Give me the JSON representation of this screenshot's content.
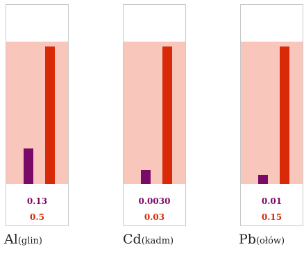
{
  "chart_data": {
    "type": "bar",
    "colors": {
      "actual": "#7a0a68",
      "limit": "#d82a08",
      "band": "#f9c6bc"
    },
    "groups": [
      {
        "symbol": "Al",
        "name": "(glin)",
        "actual": 0.13,
        "actual_label": "0.13",
        "limit": 0.5,
        "limit_label": "0.5"
      },
      {
        "symbol": "Cd",
        "name": "(kadm)",
        "actual": 0.003,
        "actual_label": "0.0030",
        "limit": 0.03,
        "limit_label": "0.03"
      },
      {
        "symbol": "Pb",
        "name": "(ołów)",
        "actual": 0.01,
        "actual_label": "0.01",
        "limit": 0.15,
        "limit_label": "0.15"
      }
    ]
  }
}
